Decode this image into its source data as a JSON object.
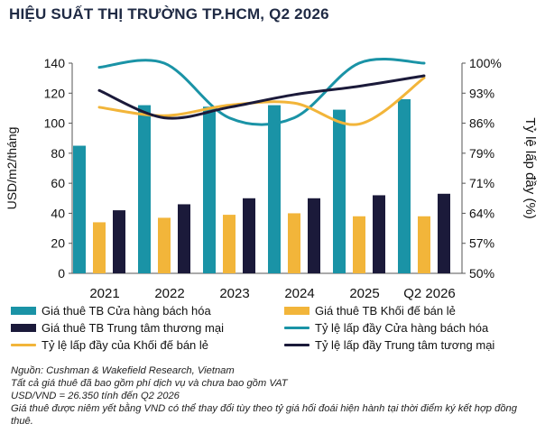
{
  "title": "HIỆU SUẤT THỊ TRƯỜNG TP.HCM, Q2 2026",
  "chart_data": {
    "type": "bar",
    "categories": [
      "2021",
      "2022",
      "2023",
      "2024",
      "2025",
      "Q2 2026"
    ],
    "ylabel": "USD/m2/tháng",
    "y2label": "Tỷ lệ lấp đầy (%)",
    "ylim": [
      0,
      140
    ],
    "yticks": [
      0,
      20,
      40,
      60,
      80,
      100,
      120,
      140
    ],
    "y2lim": [
      50,
      100
    ],
    "y2ticks": [
      "50%",
      "57%",
      "64%",
      "71%",
      "79%",
      "86%",
      "93%",
      "100%"
    ],
    "bar_series": [
      {
        "name": "Giá thuê TB Cửa hàng bách hóa",
        "color": "#1a93a6",
        "values": [
          85,
          112,
          111,
          112,
          109,
          116
        ]
      },
      {
        "name": "Giá thuê TB Khối đế bán lẻ",
        "color": "#f2b53a",
        "values": [
          34,
          37,
          39,
          40,
          38,
          38
        ]
      },
      {
        "name": "Giá thuê TB Trung tâm thương mại",
        "color": "#1b1a3a",
        "values": [
          42,
          46,
          50,
          50,
          52,
          53
        ]
      }
    ],
    "line_series": [
      {
        "name": "Tỷ lệ lấp đầy Cửa hàng bách hóa",
        "color": "#1a93a6",
        "values": [
          99,
          100,
          87,
          87,
          100,
          100
        ]
      },
      {
        "name": "Tỷ lệ lấp đầy của Khối đế bán lẻ",
        "color": "#f2b53a",
        "values": [
          89.5,
          87.5,
          90,
          90.5,
          85.5,
          96.5
        ]
      },
      {
        "name": "Tỷ lệ lấp đầy Trung tâm tương mại",
        "color": "#1b1a3a",
        "values": [
          93.5,
          87,
          89.5,
          92.5,
          94.5,
          97
        ]
      }
    ],
    "grid": false,
    "legend": "bottom"
  },
  "notes": [
    "Nguồn: Cushman & Wakefield Research, Vietnam",
    "Tất cả giá thuê đã bao gồm phí dịch vụ và chưa bao gồm VAT",
    "USD/VND = 26.350 tính đến Q2 2026",
    "Giá thuê được niêm yết bằng VND có thể thay đổi tùy theo tỷ giá hối đoái hiện hành tại thời điểm ký kết hợp đồng thuê."
  ]
}
